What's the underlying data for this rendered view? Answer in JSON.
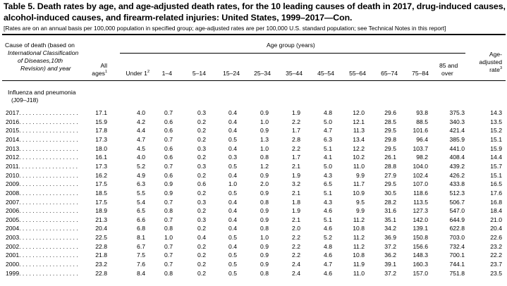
{
  "title": "Table 5. Death rates by age, and age-adjusted death rates, for the 10 leading causes of death in 2017, drug-induced causes, alcohol-induced causes, and firearm-related injuries: United States, 1999–2017—Con.",
  "subtitle": "[Rates are on an annual basis per 100,000 population in specified group; age-adjusted rates are per 100,000 U.S. standard population; see Technical Notes in this report]",
  "header": {
    "stub_line1": "Cause of death (based on",
    "stub_line2": "International Classification",
    "stub_line3": "of Diseases,10th",
    "stub_line4": "Revision) and year",
    "all_ages": "All",
    "all_ages_2": "ages",
    "all_ages_sup": "1",
    "age_group": "Age group (years)",
    "age_adj_1": "Age-",
    "age_adj_2": "adjusted",
    "age_adj_3": "rate",
    "age_adj_sup": "3",
    "under1": "Under 1",
    "under1_sup": "2",
    "c1_4": "1–4",
    "c5_14": "5–14",
    "c15_24": "15–24",
    "c25_34": "25–34",
    "c35_44": "35–44",
    "c45_54": "45–54",
    "c55_64": "55–64",
    "c65_74": "65–74",
    "c75_84": "75–84",
    "c85_1": "85 and",
    "c85_2": "over"
  },
  "cause": {
    "line1": "Influenza and pneumonia",
    "line2": "(J09–J18)"
  },
  "rows": [
    {
      "year": "2017",
      "v": [
        "17.1",
        "4.0",
        "0.7",
        "0.3",
        "0.4",
        "0.9",
        "1.9",
        "4.8",
        "12.0",
        "29.6",
        "93.8",
        "375.3",
        "14.3"
      ]
    },
    {
      "year": "2016",
      "v": [
        "15.9",
        "4.2",
        "0.6",
        "0.2",
        "0.4",
        "1.0",
        "2.2",
        "5.0",
        "12.1",
        "28.5",
        "88.5",
        "340.3",
        "13.5"
      ]
    },
    {
      "year": "2015",
      "v": [
        "17.8",
        "4.4",
        "0.6",
        "0.2",
        "0.4",
        "0.9",
        "1.7",
        "4.7",
        "11.3",
        "29.5",
        "101.6",
        "421.4",
        "15.2"
      ]
    },
    {
      "year": "2014",
      "v": [
        "17.3",
        "4.7",
        "0.7",
        "0.2",
        "0.5",
        "1.3",
        "2.8",
        "6.3",
        "13.4",
        "29.8",
        "96.4",
        "385.9",
        "15.1"
      ]
    },
    {
      "year": "2013",
      "v": [
        "18.0",
        "4.5",
        "0.6",
        "0.3",
        "0.4",
        "1.0",
        "2.2",
        "5.1",
        "12.2",
        "29.5",
        "103.7",
        "441.0",
        "15.9"
      ]
    },
    {
      "year": "2012",
      "v": [
        "16.1",
        "4.0",
        "0.6",
        "0.2",
        "0.3",
        "0.8",
        "1.7",
        "4.1",
        "10.2",
        "26.1",
        "98.2",
        "408.4",
        "14.4"
      ]
    },
    {
      "year": "2011",
      "v": [
        "17.3",
        "5.2",
        "0.7",
        "0.3",
        "0.5",
        "1.2",
        "2.1",
        "5.0",
        "11.0",
        "28.8",
        "104.0",
        "439.2",
        "15.7"
      ]
    },
    {
      "year": "2010",
      "v": [
        "16.2",
        "4.9",
        "0.6",
        "0.2",
        "0.4",
        "0.9",
        "1.9",
        "4.3",
        "9.9",
        "27.9",
        "102.4",
        "426.2",
        "15.1"
      ]
    },
    {
      "year": "2009",
      "v": [
        "17.5",
        "6.3",
        "0.9",
        "0.6",
        "1.0",
        "2.0",
        "3.2",
        "6.5",
        "11.7",
        "29.5",
        "107.0",
        "433.8",
        "16.5"
      ]
    },
    {
      "year": "2008",
      "v": [
        "18.5",
        "5.5",
        "0.9",
        "0.2",
        "0.5",
        "0.9",
        "2.1",
        "5.1",
        "10.9",
        "30.5",
        "118.6",
        "512.3",
        "17.6"
      ]
    },
    {
      "year": "2007",
      "v": [
        "17.5",
        "5.4",
        "0.7",
        "0.3",
        "0.4",
        "0.8",
        "1.8",
        "4.3",
        "9.5",
        "28.2",
        "113.5",
        "506.7",
        "16.8"
      ]
    },
    {
      "year": "2006",
      "v": [
        "18.9",
        "6.5",
        "0.8",
        "0.2",
        "0.4",
        "0.9",
        "1.9",
        "4.6",
        "9.9",
        "31.6",
        "127.3",
        "547.0",
        "18.4"
      ]
    },
    {
      "year": "2005",
      "v": [
        "21.3",
        "6.6",
        "0.7",
        "0.3",
        "0.4",
        "0.9",
        "2.1",
        "5.1",
        "11.2",
        "35.1",
        "142.0",
        "644.9",
        "21.0"
      ]
    },
    {
      "year": "2004",
      "v": [
        "20.4",
        "6.8",
        "0.8",
        "0.2",
        "0.4",
        "0.8",
        "2.0",
        "4.6",
        "10.8",
        "34.2",
        "139.1",
        "622.8",
        "20.4"
      ]
    },
    {
      "year": "2003",
      "v": [
        "22.5",
        "8.1",
        "1.0",
        "0.4",
        "0.5",
        "1.0",
        "2.2",
        "5.2",
        "11.2",
        "36.9",
        "150.8",
        "703.0",
        "22.6"
      ]
    },
    {
      "year": "2002",
      "v": [
        "22.8",
        "6.7",
        "0.7",
        "0.2",
        "0.4",
        "0.9",
        "2.2",
        "4.8",
        "11.2",
        "37.2",
        "156.6",
        "732.4",
        "23.2"
      ]
    },
    {
      "year": "2001",
      "v": [
        "21.8",
        "7.5",
        "0.7",
        "0.2",
        "0.5",
        "0.9",
        "2.2",
        "4.6",
        "10.8",
        "36.2",
        "148.3",
        "700.1",
        "22.2"
      ]
    },
    {
      "year": "2000",
      "v": [
        "23.2",
        "7.6",
        "0.7",
        "0.2",
        "0.5",
        "0.9",
        "2.4",
        "4.7",
        "11.9",
        "39.1",
        "160.3",
        "744.1",
        "23.7"
      ]
    },
    {
      "year": "1999",
      "v": [
        "22.8",
        "8.4",
        "0.8",
        "0.2",
        "0.5",
        "0.8",
        "2.4",
        "4.6",
        "11.0",
        "37.2",
        "157.0",
        "751.8",
        "23.5"
      ]
    }
  ]
}
